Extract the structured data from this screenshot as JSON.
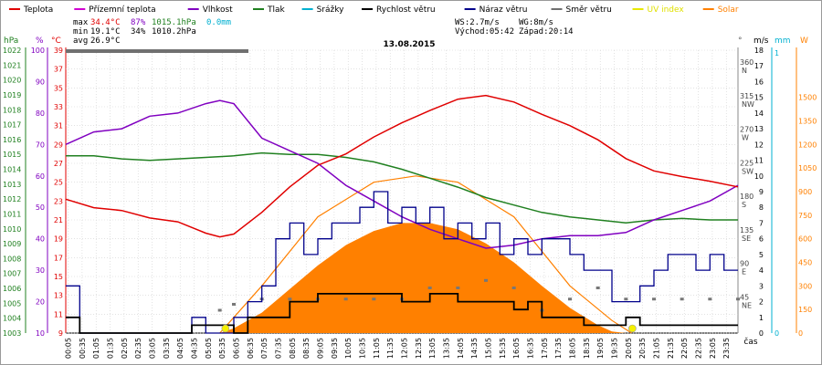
{
  "chart_data": {
    "type": "line",
    "title": "13.08.2015",
    "legend": [
      {
        "label": "Teplota",
        "color": "#e00000"
      },
      {
        "label": "Přízemní teplota",
        "color": "#d000d0"
      },
      {
        "label": "Vlhkost",
        "color": "#8000c0"
      },
      {
        "label": "Tlak",
        "color": "#208020"
      },
      {
        "label": "Srážky",
        "color": "#00b0d0"
      },
      {
        "label": "Rychlost větru",
        "color": "#000000"
      },
      {
        "label": "Náraz větru",
        "color": "#00008b"
      },
      {
        "label": "Směr větru",
        "color": "#707070"
      },
      {
        "label": "UV index",
        "color": "#e8e800"
      },
      {
        "label": "Solar",
        "color": "#ff8000"
      }
    ],
    "stats": {
      "max_label": "max",
      "max_temp": "34.4°C",
      "max_hum": "87%",
      "max_press": "1015.1hPa",
      "rain": "0.0mm",
      "min_label": "min",
      "min_temp": "19.1°C",
      "min_hum": "34%",
      "min_press": "1010.2hPa",
      "avg_label": "avg",
      "avg_temp": "26.9°C",
      "ws": "WS:2.7m/s",
      "wg": "WG:8m/s",
      "sunrise": "Východ:05:42",
      "sunset": "Západ:20:14"
    },
    "axis_units": {
      "press": "hPa",
      "hum": "%",
      "temp": "°C",
      "dir": "°",
      "wind": "m/s",
      "rain": "mm",
      "solar": "W"
    },
    "axis_colors": {
      "press": "#208020",
      "hum": "#8000c0",
      "temp": "#e00000",
      "dir": "#555555",
      "wind": "#000000",
      "rain": "#00b0d0",
      "solar": "#ff8000"
    },
    "press_ticks": [
      "1022",
      "1021",
      "1020",
      "1019",
      "1018",
      "1017",
      "1016",
      "1015",
      "1014",
      "1013",
      "1012",
      "1011",
      "1010",
      "1009",
      "1008",
      "1007",
      "1006",
      "1005",
      "1004",
      "1003"
    ],
    "hum_ticks": [
      "100",
      "90",
      "80",
      "70",
      "60",
      "50",
      "40",
      "30",
      "20",
      "10"
    ],
    "temp_ticks": [
      "39",
      "37",
      "35",
      "33",
      "31",
      "29",
      "27",
      "25",
      "23",
      "21",
      "19",
      "17",
      "15",
      "13",
      "11",
      "9"
    ],
    "dir_ticks": [
      "360",
      "315",
      "270",
      "225",
      "180",
      "135",
      "90",
      "45"
    ],
    "dir_labels": [
      "N",
      "NW",
      "W",
      "SW",
      "S",
      "SE",
      "E",
      "NE"
    ],
    "wind_ticks": [
      "18",
      "17",
      "16",
      "15",
      "14",
      "13",
      "12",
      "11",
      "10",
      "9",
      "8",
      "7",
      "6",
      "5",
      "4",
      "3",
      "2",
      "1",
      "0"
    ],
    "rain_ticks": [
      "1",
      "0"
    ],
    "solar_ticks": [
      "1500",
      "1350",
      "1200",
      "1050",
      "900",
      "750",
      "600",
      "450",
      "300",
      "150",
      "0"
    ],
    "x_label": "čas",
    "x_ticks": [
      "00:05",
      "00:35",
      "01:05",
      "01:35",
      "02:05",
      "02:35",
      "03:05",
      "03:35",
      "04:05",
      "04:35",
      "05:05",
      "05:35",
      "06:05",
      "06:35",
      "07:05",
      "07:35",
      "08:05",
      "08:35",
      "09:05",
      "09:35",
      "10:05",
      "10:35",
      "11:05",
      "11:35",
      "12:05",
      "12:35",
      "13:05",
      "13:35",
      "14:05",
      "14:35",
      "15:05",
      "15:35",
      "16:05",
      "16:35",
      "17:05",
      "17:35",
      "18:05",
      "18:35",
      "19:05",
      "19:35",
      "20:05",
      "20:35",
      "21:05",
      "21:35",
      "22:05",
      "22:35",
      "23:05",
      "23:35"
    ],
    "temperature": {
      "x_hours": [
        0,
        1,
        2,
        3,
        4,
        5,
        5.5,
        6,
        7,
        8,
        9,
        10,
        11,
        12,
        13,
        14,
        15,
        16,
        17,
        18,
        19,
        20,
        21,
        22,
        23,
        24
      ],
      "y": [
        23.2,
        22.3,
        22.0,
        21.2,
        20.8,
        19.6,
        19.2,
        19.5,
        21.8,
        24.5,
        26.8,
        28.0,
        29.8,
        31.3,
        32.6,
        33.8,
        34.2,
        33.5,
        32.2,
        31.0,
        29.5,
        27.5,
        26.2,
        25.6,
        25.1,
        24.5
      ]
    },
    "humidity": {
      "x_hours": [
        0,
        1,
        2,
        3,
        4,
        5,
        5.5,
        6,
        7,
        8,
        9,
        10,
        11,
        12,
        13,
        14,
        15,
        16,
        17,
        18,
        19,
        20,
        21,
        22,
        23,
        24
      ],
      "y": [
        70,
        74,
        75,
        79,
        80,
        83,
        84,
        83,
        72,
        68,
        64,
        57,
        52,
        47,
        43,
        40,
        37,
        38,
        40,
        41,
        41,
        42,
        46,
        49,
        52,
        57
      ]
    },
    "pressure": {
      "x_hours": [
        0,
        1,
        2,
        3,
        4,
        5,
        6,
        7,
        8,
        9,
        10,
        11,
        12,
        13,
        14,
        15,
        16,
        17,
        18,
        19,
        20,
        21,
        22,
        23,
        24
      ],
      "y": [
        1014.9,
        1014.9,
        1014.7,
        1014.6,
        1014.7,
        1014.8,
        1014.9,
        1015.1,
        1015.0,
        1015.0,
        1014.8,
        1014.5,
        1014.0,
        1013.4,
        1012.8,
        1012.1,
        1011.6,
        1011.1,
        1010.8,
        1010.6,
        1010.4,
        1010.6,
        1010.7,
        1010.6,
        1010.6
      ]
    },
    "wind_speed": {
      "x_hours": [
        0,
        0.5,
        1,
        2,
        3,
        4,
        4.5,
        5,
        6,
        6.5,
        7,
        8,
        9,
        10,
        11,
        12,
        13,
        14,
        15,
        16,
        16.5,
        17,
        18,
        18.5,
        19,
        20,
        20.5,
        21,
        22,
        23,
        24
      ],
      "y": [
        1,
        0,
        0,
        0,
        0,
        0,
        0.5,
        0.5,
        0,
        1,
        1,
        2,
        2.5,
        2.5,
        2.5,
        2,
        2.5,
        2,
        2,
        1.5,
        2,
        1,
        1,
        0.5,
        0.5,
        1,
        0.5,
        0.5,
        0.5,
        0.5,
        0.5
      ]
    },
    "wind_gust": {
      "x_hours": [
        0,
        0.3,
        0.5,
        1,
        2,
        3,
        4,
        4.5,
        5,
        6,
        6.5,
        7,
        7.5,
        8,
        8.5,
        9,
        9.5,
        10,
        10.5,
        11,
        11.5,
        12,
        12.5,
        13,
        13.5,
        14,
        14.5,
        15,
        15.5,
        16,
        16.5,
        17,
        17.5,
        18,
        18.5,
        19,
        19.5,
        20,
        20.5,
        21,
        21.5,
        22,
        22.5,
        23,
        23.5,
        24
      ],
      "y": [
        3,
        3,
        0,
        0,
        0,
        0,
        0,
        1,
        0,
        1,
        2,
        3,
        6,
        7,
        5,
        6,
        7,
        7,
        8,
        9,
        7,
        8,
        7,
        8,
        6,
        7,
        6,
        7,
        5,
        6,
        5,
        6,
        6,
        5,
        4,
        4,
        2,
        2,
        3,
        4,
        5,
        5,
        4,
        5,
        4,
        4
      ]
    },
    "wind_dir_deg": {
      "x_hours": [
        5.5,
        6,
        7,
        8,
        9,
        10,
        11,
        12,
        13,
        14,
        15,
        16,
        17,
        18,
        19,
        20,
        21,
        22,
        23,
        24
      ],
      "y": [
        30,
        38,
        45,
        45,
        45,
        45,
        45,
        45,
        60,
        60,
        70,
        60,
        30,
        45,
        60,
        45,
        45,
        45,
        45,
        45
      ]
    },
    "solar": {
      "x_hours": [
        5.5,
        6,
        7,
        8,
        9,
        10,
        11,
        12,
        13,
        14,
        15,
        16,
        17,
        18,
        19,
        19.5,
        20
      ],
      "y": [
        0,
        30,
        130,
        280,
        430,
        560,
        650,
        700,
        700,
        660,
        570,
        450,
        300,
        160,
        50,
        10,
        0
      ]
    },
    "solar_max": {
      "x_hours": [
        5.5,
        7,
        9,
        11,
        12.5,
        14,
        16,
        18,
        19.5,
        20.2
      ],
      "y": [
        0,
        300,
        740,
        960,
        1000,
        960,
        740,
        300,
        80,
        0
      ]
    }
  }
}
